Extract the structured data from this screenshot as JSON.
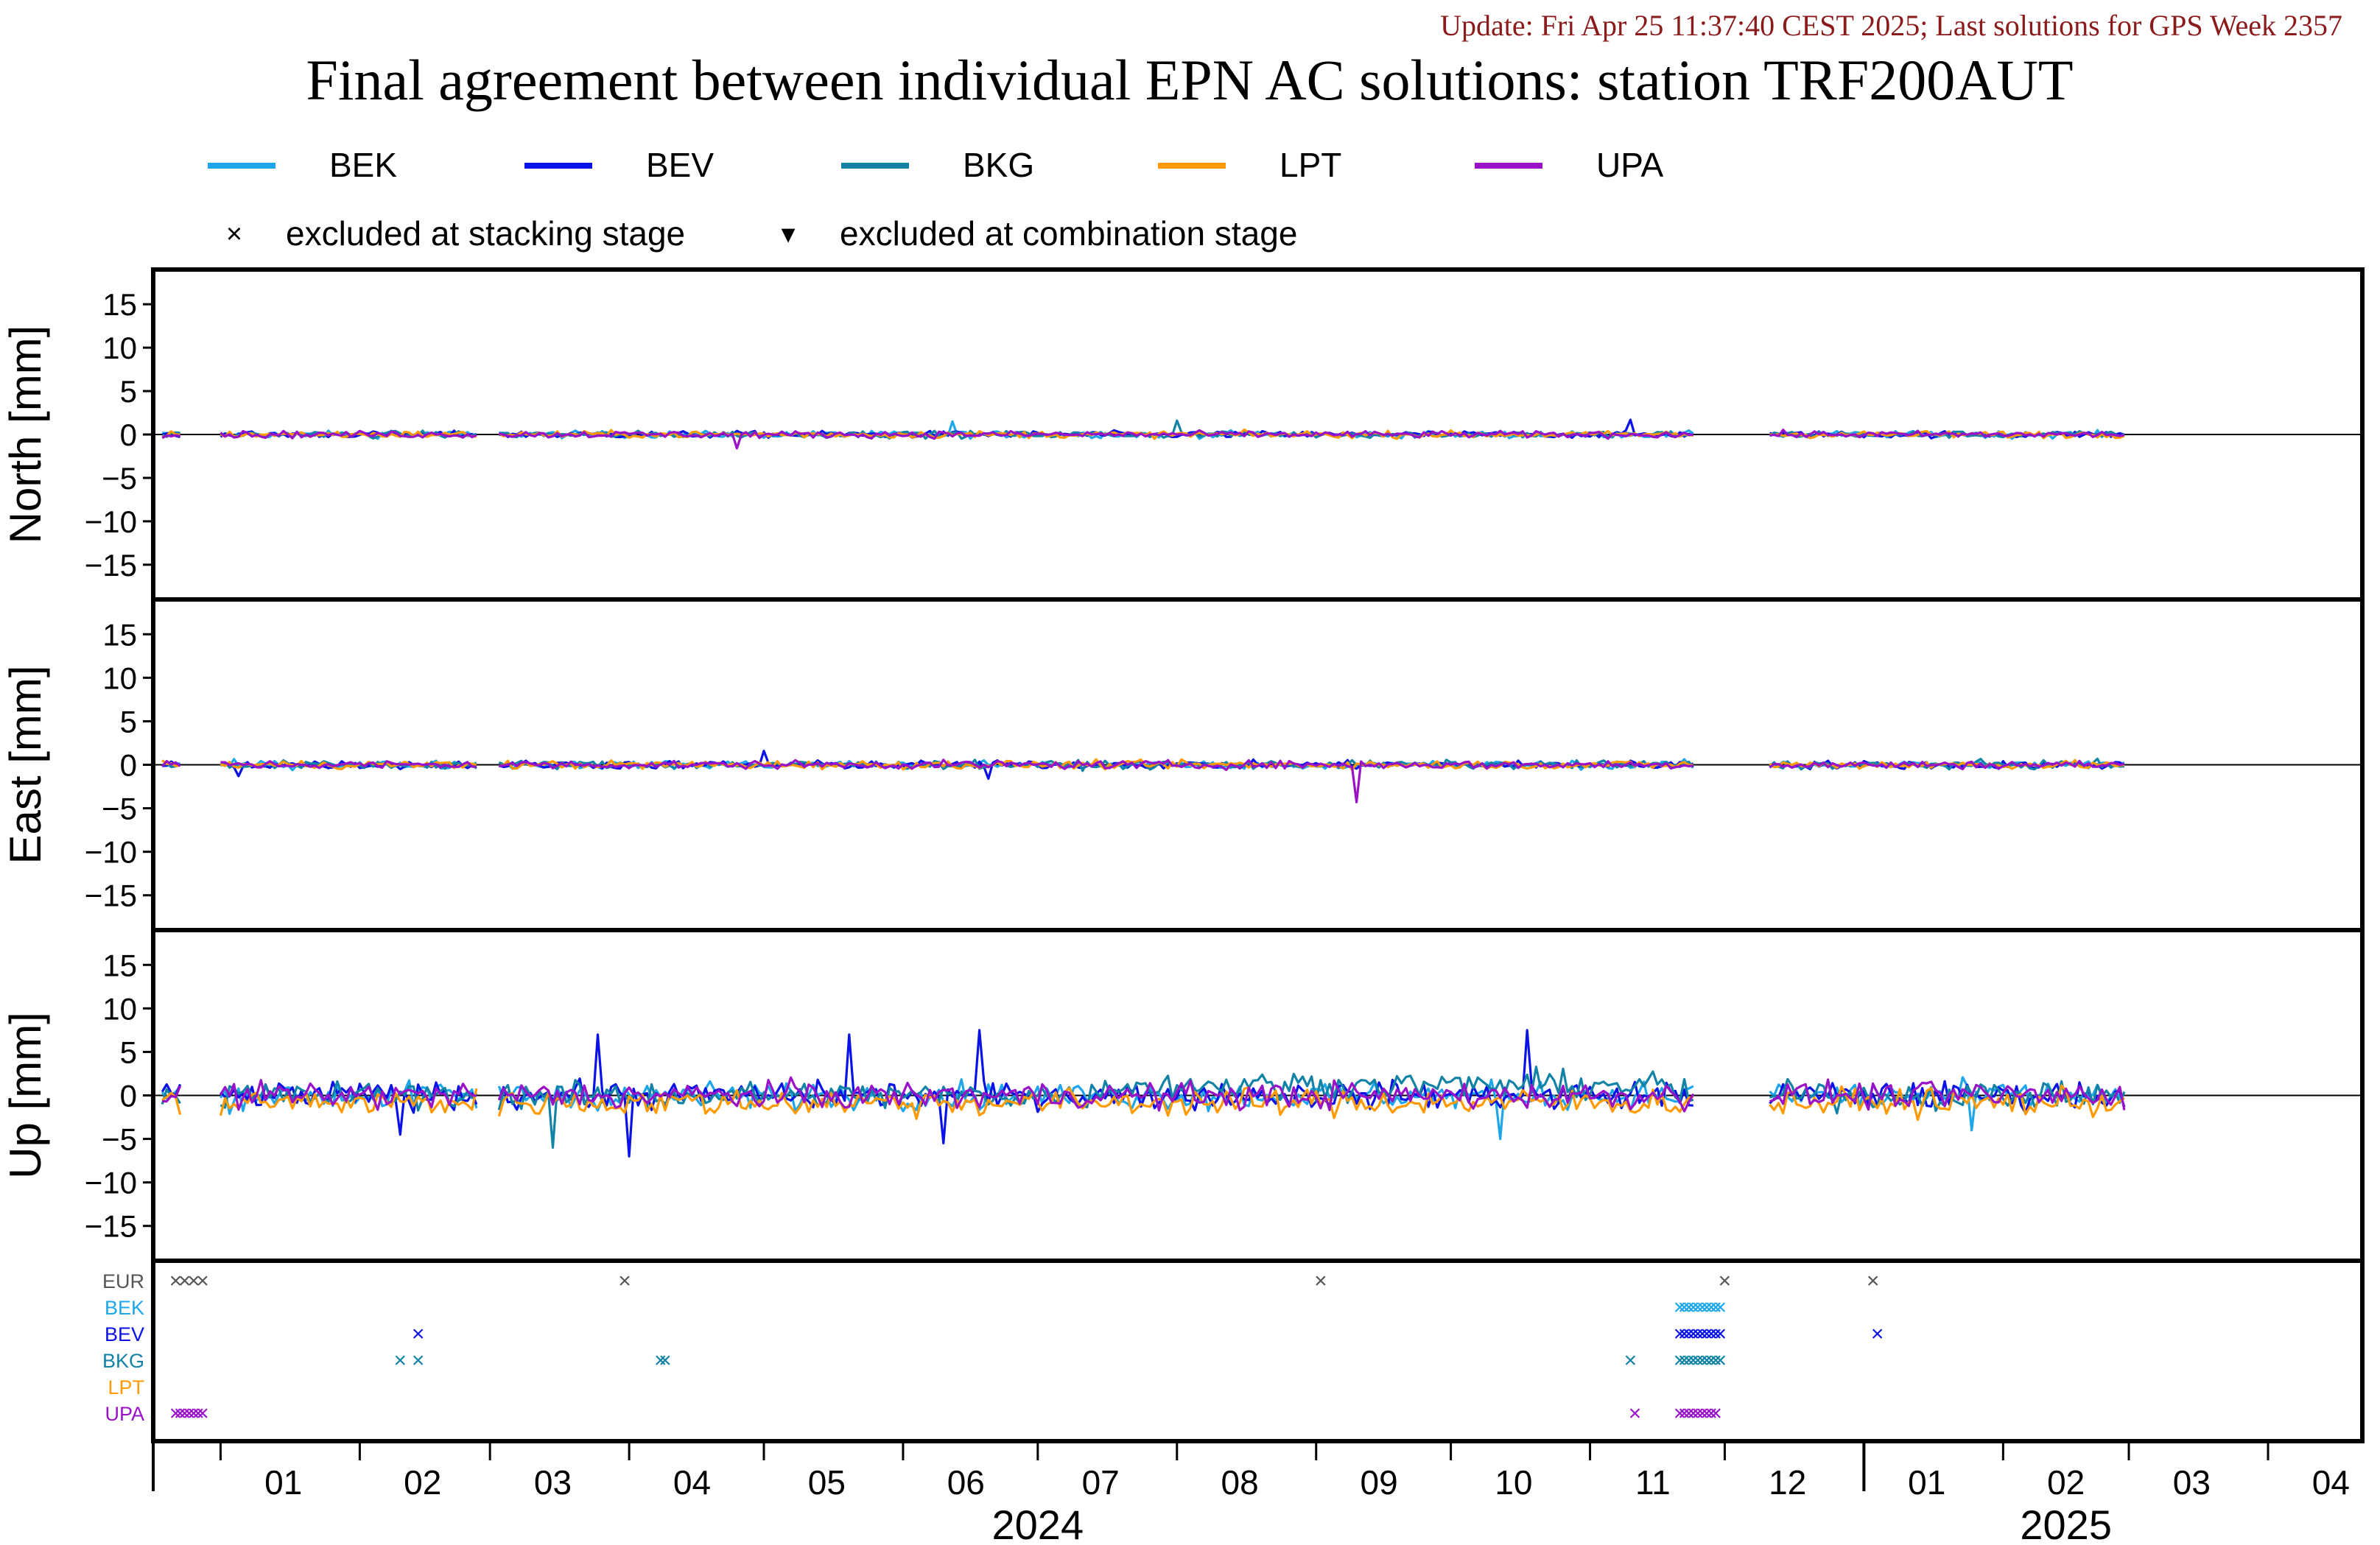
{
  "update_text": "Update: Fri Apr 25 11:37:40 CEST 2025; Last solutions for GPS Week 2357",
  "title": "Final agreement between individual EPN AC solutions: station TRF200AUT",
  "legend": {
    "series": [
      {
        "name": "BEK",
        "color": "#1ea6ea"
      },
      {
        "name": "BEV",
        "color": "#0a12e8"
      },
      {
        "name": "BKG",
        "color": "#1383a5"
      },
      {
        "name": "LPT",
        "color": "#ff9a00"
      },
      {
        "name": "UPA",
        "color": "#9a12c8"
      }
    ],
    "markers": [
      {
        "symbol": "×",
        "label": "excluded at stacking stage"
      },
      {
        "symbol": "▾",
        "label": "excluded at combination stage"
      }
    ]
  },
  "chart_data": {
    "type": "line",
    "x_range": [
      "2023-12-17",
      "2025-04-22"
    ],
    "y_ticks": [
      15,
      10,
      5,
      0,
      -5,
      -10,
      -15
    ],
    "ylim": [
      -19,
      19
    ],
    "panels": [
      {
        "ylabel": "North [mm]",
        "typical_spread_mm": 0.5,
        "peaks": [
          {
            "date": "2024-06-12",
            "series": "BEK",
            "value": 1.5
          },
          {
            "date": "2024-08-01",
            "series": "BKG",
            "value": 1.6
          },
          {
            "date": "2024-11-10",
            "series": "BEV",
            "value": 1.7
          },
          {
            "date": "2024-04-25",
            "series": "UPA",
            "value": -1.6
          },
          {
            "date": "2025-03-01",
            "series": "BEK",
            "value": -1.4
          }
        ]
      },
      {
        "ylabel": "East [mm]",
        "typical_spread_mm": 0.6,
        "peaks": [
          {
            "date": "2024-05-01",
            "series": "BEV",
            "value": 1.6
          },
          {
            "date": "2024-09-10",
            "series": "UPA",
            "value": -4.3
          },
          {
            "date": "2024-01-05",
            "series": "BEV",
            "value": -1.3
          },
          {
            "date": "2024-06-20",
            "series": "BEV",
            "value": -1.6
          }
        ]
      },
      {
        "ylabel": "Up [mm]",
        "typical_spread_mm": 2.0,
        "peaks": [
          {
            "date": "2024-02-10",
            "series": "BEV",
            "value": -4.5
          },
          {
            "date": "2024-03-15",
            "series": "BKG",
            "value": -6.0
          },
          {
            "date": "2024-03-25",
            "series": "BEV",
            "value": 7.0
          },
          {
            "date": "2024-04-01",
            "series": "BEV",
            "value": -7.0
          },
          {
            "date": "2024-05-20",
            "series": "BEV",
            "value": 7.0
          },
          {
            "date": "2024-06-18",
            "series": "BEV",
            "value": 7.5
          },
          {
            "date": "2024-06-10",
            "series": "BEV",
            "value": -5.5
          },
          {
            "date": "2024-10-18",
            "series": "BEV",
            "value": 7.5
          },
          {
            "date": "2024-10-12",
            "series": "BEK",
            "value": -5.0
          },
          {
            "date": "2025-01-25",
            "series": "BEK",
            "value": -4.0
          }
        ]
      }
    ],
    "gaps": [
      [
        "2023-12-23",
        "2024-01-01"
      ],
      [
        "2024-02-27",
        "2024-03-03"
      ],
      [
        "2024-11-24",
        "2024-12-01"
      ],
      [
        "2024-12-01",
        "2024-12-11"
      ]
    ],
    "series_end": "2025-02-28",
    "exclusions": {
      "rows": [
        {
          "label": "EUR",
          "color": "#555555",
          "dates": [
            "2023-12-22",
            "2023-12-24",
            "2023-12-26",
            "2023-12-28",
            "2024-03-31",
            "2024-09-02",
            "2024-12-01",
            "2025-01-03"
          ]
        },
        {
          "label": "BEK",
          "color": "#1ea6ea",
          "dates": [
            "2024-11-21",
            "2024-11-22",
            "2024-11-23",
            "2024-11-24",
            "2024-11-25",
            "2024-11-26",
            "2024-11-27",
            "2024-11-28",
            "2024-11-29",
            "2024-11-30"
          ]
        },
        {
          "label": "BEV",
          "color": "#0a12e8",
          "dates": [
            "2024-02-14",
            "2024-11-21",
            "2024-11-22",
            "2024-11-23",
            "2024-11-24",
            "2024-11-25",
            "2024-11-26",
            "2024-11-27",
            "2024-11-28",
            "2024-11-29",
            "2024-11-30",
            "2025-01-04"
          ]
        },
        {
          "label": "BKG",
          "color": "#1383a5",
          "dates": [
            "2024-02-10",
            "2024-02-14",
            "2024-04-08",
            "2024-04-09",
            "2024-11-10",
            "2024-11-21",
            "2024-11-22",
            "2024-11-23",
            "2024-11-24",
            "2024-11-25",
            "2024-11-26",
            "2024-11-27",
            "2024-11-28",
            "2024-11-29",
            "2024-11-30"
          ]
        },
        {
          "label": "LPT",
          "color": "#ff9a00",
          "dates": []
        },
        {
          "label": "UPA",
          "color": "#9a12c8",
          "dates": [
            "2023-12-22",
            "2023-12-23",
            "2023-12-24",
            "2023-12-25",
            "2023-12-26",
            "2023-12-27",
            "2023-12-28",
            "2024-11-11",
            "2024-11-21",
            "2024-11-22",
            "2024-11-23",
            "2024-11-24",
            "2024-11-25",
            "2024-11-26",
            "2024-11-27",
            "2024-11-28",
            "2024-11-29"
          ]
        }
      ]
    },
    "x_axis": {
      "month_labels": [
        {
          "label": "01",
          "date": "2024-01-15"
        },
        {
          "label": "02",
          "date": "2024-02-15"
        },
        {
          "label": "03",
          "date": "2024-03-15"
        },
        {
          "label": "04",
          "date": "2024-04-15"
        },
        {
          "label": "05",
          "date": "2024-05-15"
        },
        {
          "label": "06",
          "date": "2024-06-15"
        },
        {
          "label": "07",
          "date": "2024-07-15"
        },
        {
          "label": "08",
          "date": "2024-08-15"
        },
        {
          "label": "09",
          "date": "2024-09-15"
        },
        {
          "label": "10",
          "date": "2024-10-15"
        },
        {
          "label": "11",
          "date": "2024-11-15"
        },
        {
          "label": "12",
          "date": "2024-12-15"
        },
        {
          "label": "01",
          "date": "2025-01-15"
        },
        {
          "label": "02",
          "date": "2025-02-15"
        },
        {
          "label": "03",
          "date": "2025-03-15"
        },
        {
          "label": "04",
          "date": "2025-04-15"
        }
      ],
      "year_labels": [
        {
          "label": "2024",
          "date": "2024-07-01"
        },
        {
          "label": "2025",
          "date": "2025-02-15"
        }
      ]
    }
  }
}
